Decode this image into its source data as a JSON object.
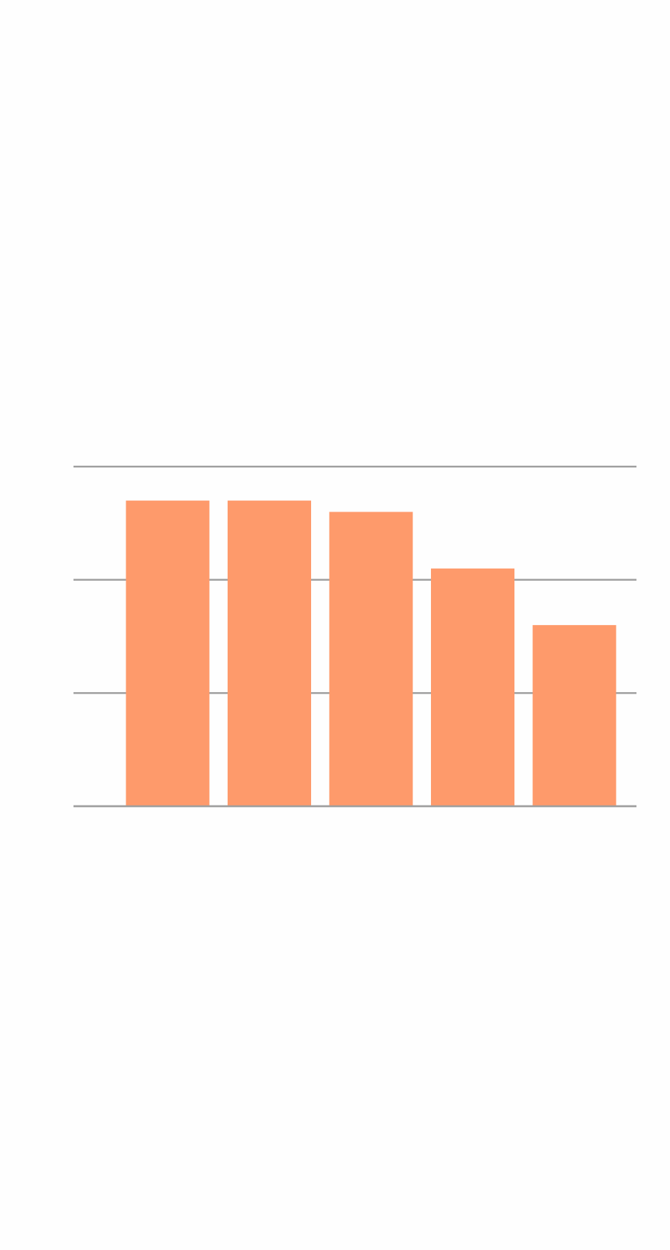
{
  "chart_data": {
    "type": "bar",
    "categories": [
      "",
      "",
      "",
      "",
      ""
    ],
    "values": [
      2.7,
      2.7,
      2.6,
      2.1,
      1.6
    ],
    "ylim": [
      0,
      3
    ],
    "yticks": [
      0,
      1,
      2,
      3
    ],
    "grid": true,
    "bar_color": "#fe9a6b",
    "grid_color": "#9e9e9e",
    "background": "#fefefe"
  }
}
